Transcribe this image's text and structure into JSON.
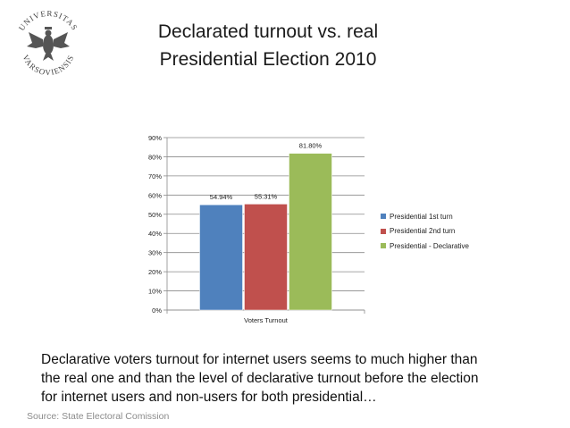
{
  "slide": {
    "title_line1": "Declarated turnout vs. real",
    "title_line2": "Presidential Election 2010",
    "caption_line1": "Declarative voters turnout for internet users seems to much higher than",
    "caption_line2": "the real one and than the level of declarative turnout before the election",
    "caption_line3": "for internet users and non-users for both presidential…",
    "source": "Source: State Electoral Comission",
    "logo": {
      "icon": "university-seal-icon",
      "text_top": "UNIVERSITAS",
      "text_bottom": "VARSOVIENSIS"
    }
  },
  "chart_data": {
    "type": "bar",
    "categories": [
      "Voters Turnout"
    ],
    "series": [
      {
        "name": "Presidential 1st turn",
        "values": [
          54.94
        ],
        "label": "54.94%",
        "color": "#4F81BD"
      },
      {
        "name": "Presidential 2nd turn",
        "values": [
          55.31
        ],
        "label": "55.31%",
        "color": "#C0504D"
      },
      {
        "name": "Presidential - Declarative",
        "values": [
          81.8
        ],
        "label": "81.80%",
        "color": "#9BBB59"
      }
    ],
    "ylim": [
      0,
      90
    ],
    "yticks": [
      0,
      10,
      20,
      30,
      40,
      50,
      60,
      70,
      80,
      90
    ],
    "ytick_labels": [
      "0%",
      "10%",
      "20%",
      "30%",
      "40%",
      "50%",
      "60%",
      "70%",
      "80%",
      "90%"
    ],
    "grid": true,
    "legend_position": "right"
  }
}
